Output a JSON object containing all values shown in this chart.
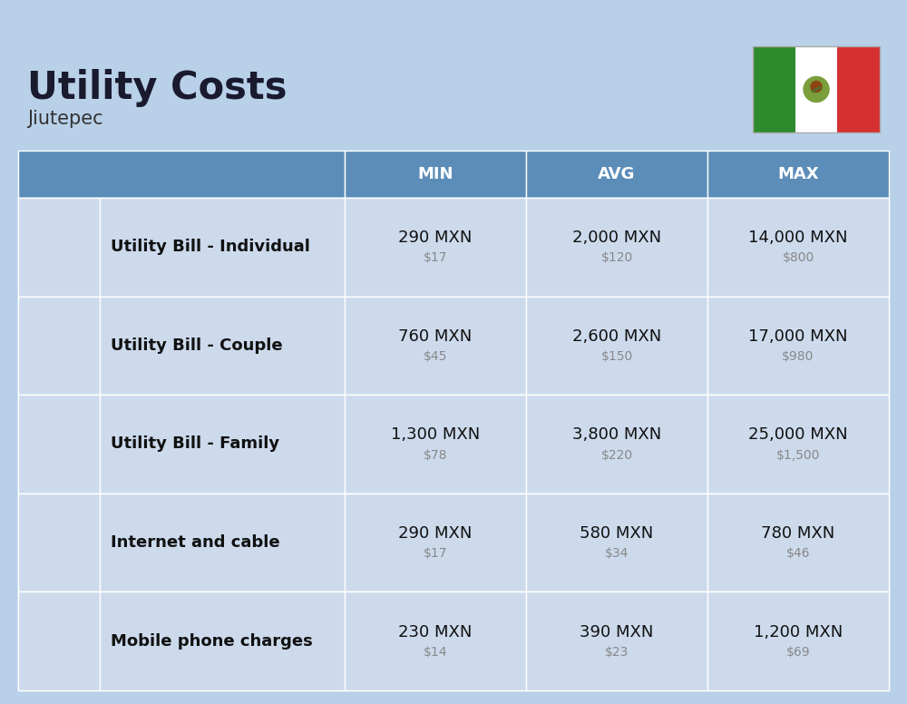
{
  "title": "Utility Costs",
  "subtitle": "Jiutepec",
  "background_color": "#b8d0e8",
  "header_bg_color": "#5b8db8",
  "header_text_color": "#ffffff",
  "row_bg": "#ccdaec",
  "row_stripe": "#bccfe4",
  "icon_col_bg": "#5b8db8",
  "label_col_bg": "#5b8db8",
  "columns": [
    "MIN",
    "AVG",
    "MAX"
  ],
  "rows": [
    {
      "label": "Utility Bill - Individual",
      "min_mxn": "290 MXN",
      "min_usd": "$17",
      "avg_mxn": "2,000 MXN",
      "avg_usd": "$120",
      "max_mxn": "14,000 MXN",
      "max_usd": "$800"
    },
    {
      "label": "Utility Bill - Couple",
      "min_mxn": "760 MXN",
      "min_usd": "$45",
      "avg_mxn": "2,600 MXN",
      "avg_usd": "$150",
      "max_mxn": "17,000 MXN",
      "max_usd": "$980"
    },
    {
      "label": "Utility Bill - Family",
      "min_mxn": "1,300 MXN",
      "min_usd": "$78",
      "avg_mxn": "3,800 MXN",
      "avg_usd": "$220",
      "max_mxn": "25,000 MXN",
      "max_usd": "$1,500"
    },
    {
      "label": "Internet and cable",
      "min_mxn": "290 MXN",
      "min_usd": "$17",
      "avg_mxn": "580 MXN",
      "avg_usd": "$34",
      "max_mxn": "780 MXN",
      "max_usd": "$46"
    },
    {
      "label": "Mobile phone charges",
      "min_mxn": "230 MXN",
      "min_usd": "$14",
      "avg_mxn": "390 MXN",
      "avg_usd": "$23",
      "max_mxn": "1,200 MXN",
      "max_usd": "$69"
    }
  ],
  "title_fontsize": 30,
  "subtitle_fontsize": 15,
  "header_fontsize": 13,
  "cell_mxn_fontsize": 13,
  "cell_usd_fontsize": 10,
  "label_fontsize": 13,
  "flag_green": "#2d8a2d",
  "flag_white": "#ffffff",
  "flag_red": "#d63030"
}
